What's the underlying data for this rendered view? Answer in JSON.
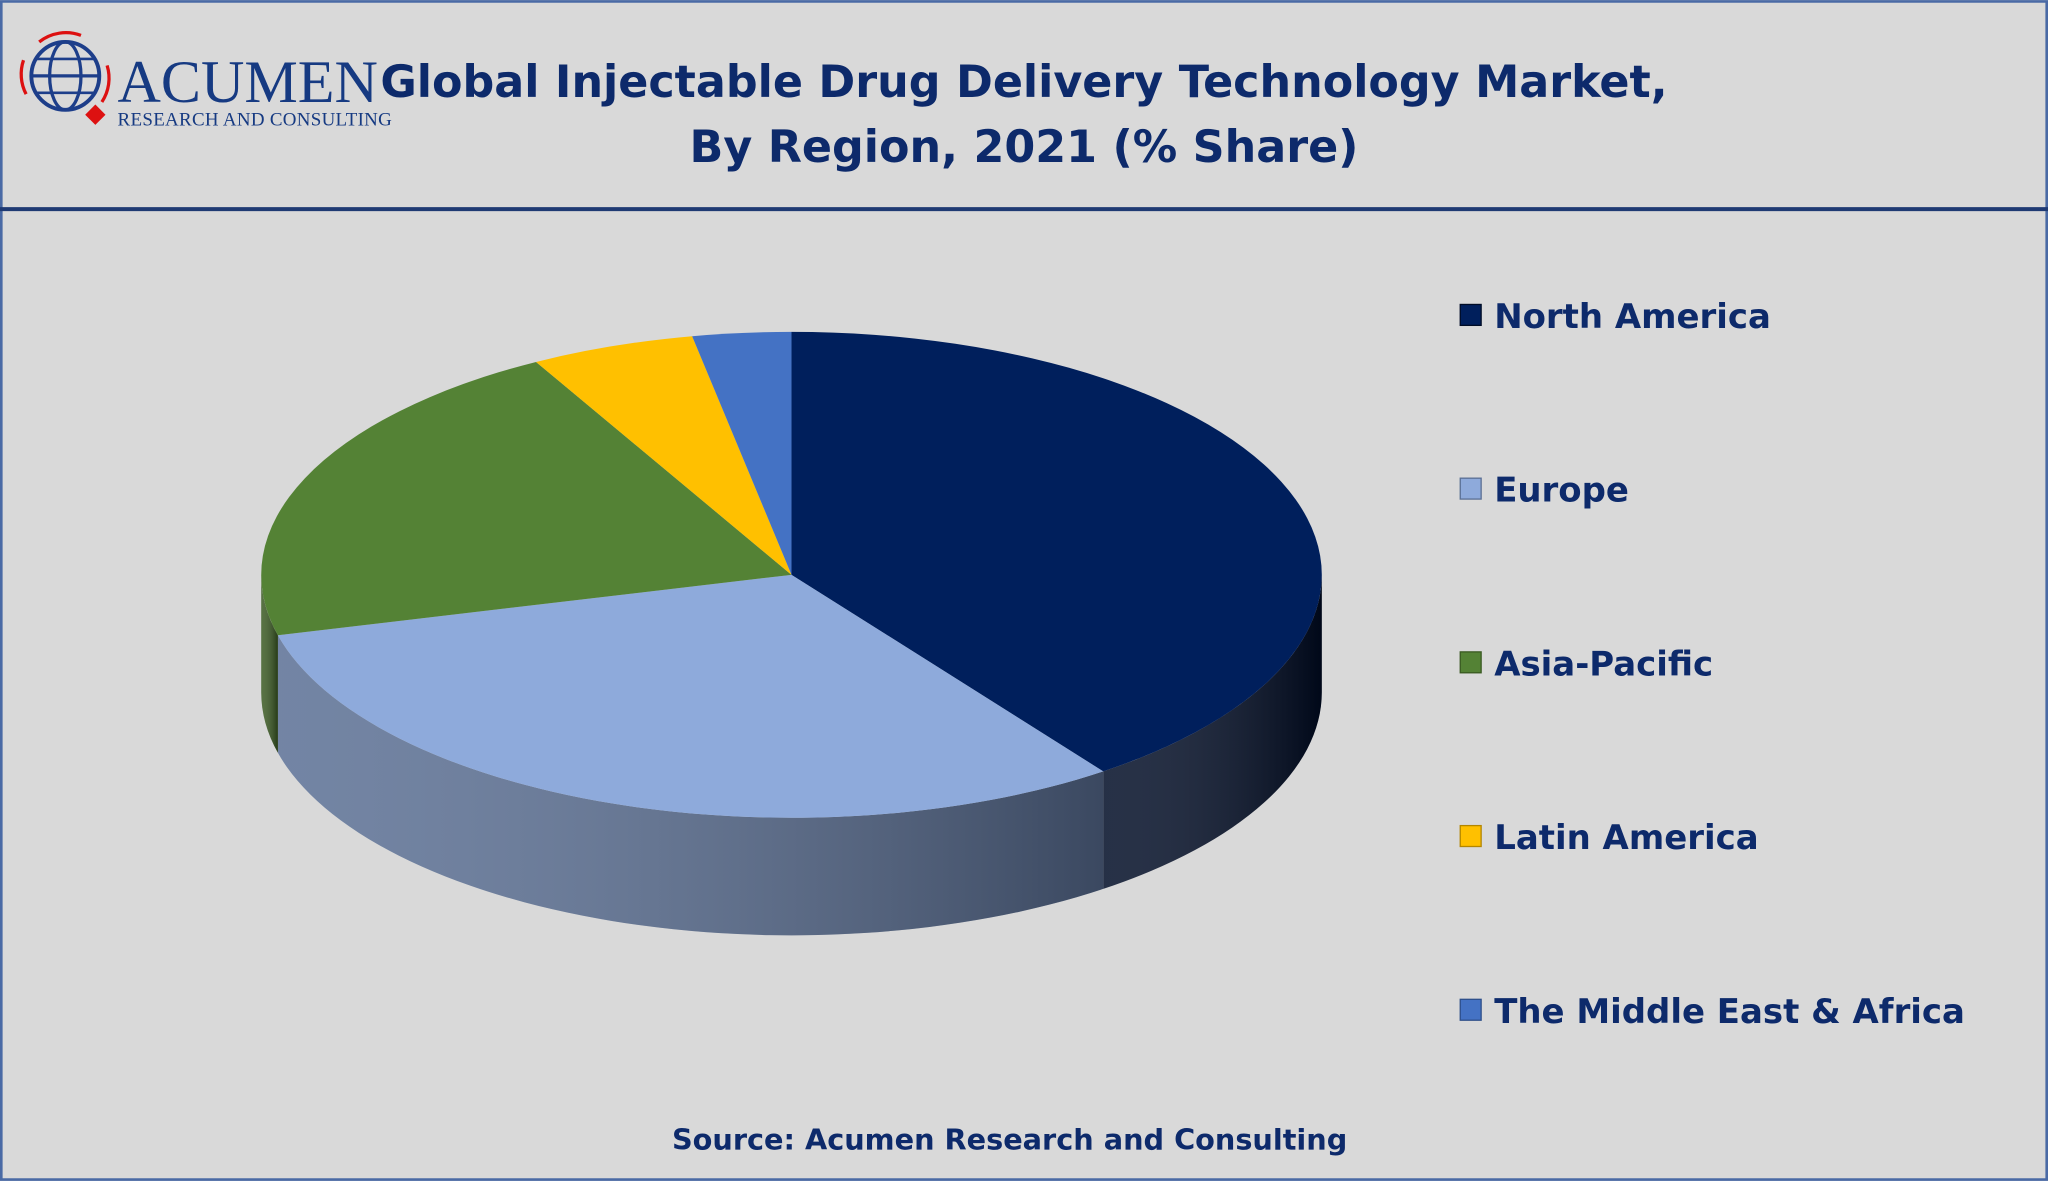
{
  "logo": {
    "name": "ACUMEN",
    "tagline": "RESEARCH AND CONSULTING"
  },
  "chart_data": {
    "type": "pie",
    "title": "Global Injectable Drug Delivery Technology Market,",
    "subtitle": "By Region, 2021 (% Share)",
    "categories": [
      "North America",
      "Europe",
      "Asia-Pacific",
      "Latin America",
      "The Middle East & Africa"
    ],
    "values": [
      40,
      31,
      21,
      5,
      3
    ],
    "unit": "% share (estimated)",
    "colors": [
      "#001f5c",
      "#8eaadb",
      "#548235",
      "#ffc000",
      "#4472c4"
    ],
    "side_colors": [
      "#000c26",
      "#5a6f94",
      "#3a5a22",
      "#b38600",
      "#2e4f8a"
    ],
    "legend_position": "right",
    "source": "Source: Acumen Research and Consulting"
  }
}
